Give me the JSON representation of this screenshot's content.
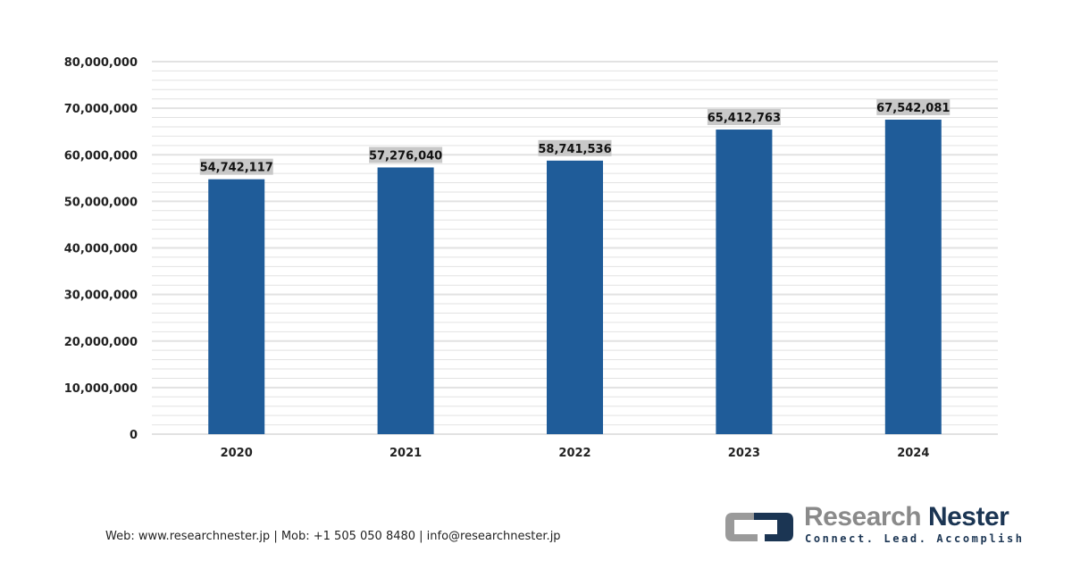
{
  "chart_data": {
    "type": "bar",
    "title": "",
    "xlabel": "",
    "ylabel": "",
    "categories": [
      "2020",
      "2021",
      "2022",
      "2023",
      "2024"
    ],
    "values": [
      54742117,
      57276040,
      58741536,
      65412763,
      67542081
    ],
    "data_labels": [
      "54,742,117",
      "57,276,040",
      "58,741,536",
      "65,412,763",
      "67,542,081"
    ],
    "ylim": [
      0,
      80000000
    ],
    "yticks": [
      0,
      10000000,
      20000000,
      30000000,
      40000000,
      50000000,
      60000000,
      70000000,
      80000000
    ],
    "ytick_labels": [
      "0",
      "10,000,000",
      "20,000,000",
      "30,000,000",
      "40,000,000",
      "50,000,000",
      "60,000,000",
      "70,000,000",
      "80,000,000"
    ],
    "minor_step": 2000000,
    "grid": true,
    "legend": "none",
    "colors": {
      "bar": "#1f5c99",
      "label_bg": "#c8c8c8",
      "grid": "#e2e2e2"
    }
  },
  "footer": {
    "contact": "Web: www.researchnester.jp | Mob: +1 505 050 8480 | info@researchnester.jp"
  },
  "logo": {
    "word1": "Research",
    "word2": "Nester",
    "tagline": "Connect. Lead. Accomplish"
  }
}
